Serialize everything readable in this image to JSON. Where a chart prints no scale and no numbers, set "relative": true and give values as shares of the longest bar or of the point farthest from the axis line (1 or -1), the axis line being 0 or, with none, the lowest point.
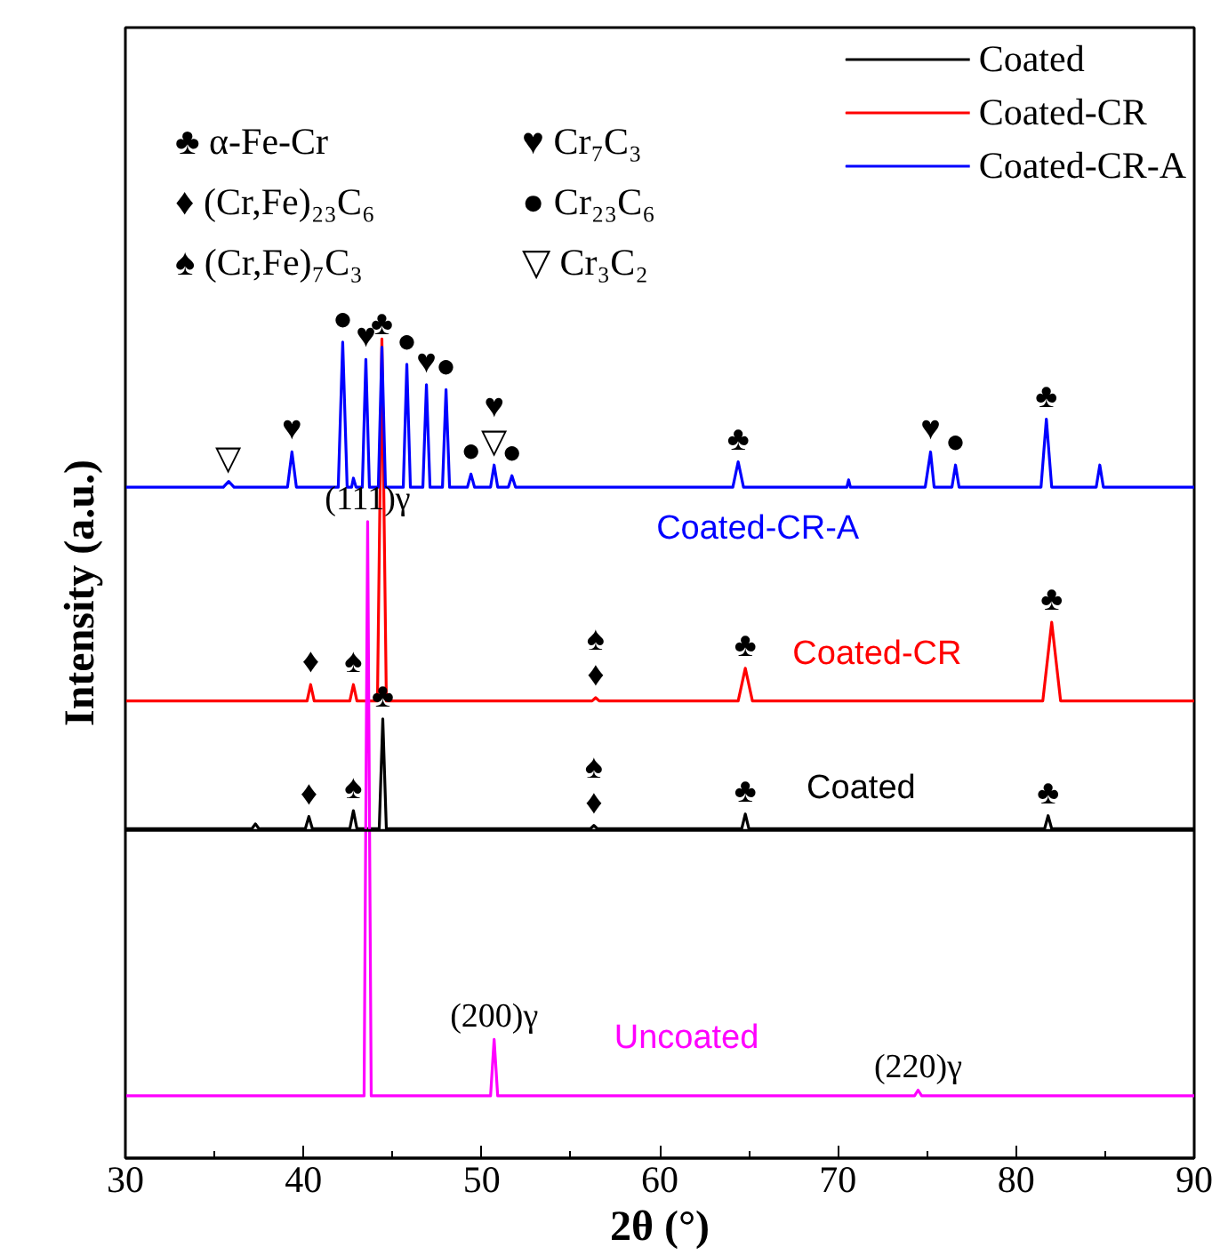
{
  "chart_data": {
    "type": "line",
    "relative": true,
    "xlabel": "2θ (°)",
    "ylabel": "Intensity (a.u.)",
    "xlim": [
      30,
      90
    ],
    "xticks": [
      30,
      40,
      50,
      60,
      70,
      80,
      90
    ],
    "legend": "top right",
    "grid": false,
    "series": [
      {
        "name": "Coated",
        "color": "#000000",
        "x": [
          30,
          37.1,
          37.3,
          37.5,
          40.1,
          40.3,
          40.5,
          42.6,
          42.8,
          43.0,
          44.25,
          44.45,
          44.65,
          56.1,
          56.3,
          56.5,
          64.6,
          64.8,
          65.0,
          81.6,
          81.8,
          82.0,
          90
        ],
        "values": [
          0.402,
          0.402,
          0.408,
          0.402,
          0.402,
          0.417,
          0.402,
          0.402,
          0.424,
          0.402,
          0.402,
          0.536,
          0.402,
          0.402,
          0.406,
          0.402,
          0.402,
          0.42,
          0.402,
          0.402,
          0.418,
          0.402,
          0.402
        ]
      },
      {
        "name": "Coated-CR",
        "color": "#ff0000",
        "x": [
          30,
          40.2,
          40.4,
          40.6,
          42.6,
          42.8,
          43.0,
          44.15,
          44.4,
          44.65,
          56.2,
          56.4,
          56.6,
          64.4,
          64.8,
          65.2,
          81.5,
          82.0,
          82.5,
          90
        ],
        "values": [
          0.558,
          0.558,
          0.578,
          0.558,
          0.558,
          0.578,
          0.558,
          0.558,
          1.0,
          0.558,
          0.558,
          0.562,
          0.558,
          0.558,
          0.598,
          0.558,
          0.558,
          0.654,
          0.558,
          0.558
        ]
      },
      {
        "name": "Coated-CR-A",
        "color": "#0000ff",
        "x": [
          30,
          35.5,
          35.8,
          36.1,
          39.1,
          39.35,
          39.6,
          41.95,
          42.2,
          42.45,
          42.7,
          42.8,
          42.95,
          43.3,
          43.5,
          43.7,
          44.2,
          44.4,
          44.6,
          45.6,
          45.8,
          46.0,
          46.7,
          46.9,
          47.1,
          47.8,
          48.0,
          48.2,
          49.2,
          49.4,
          49.6,
          50.5,
          50.7,
          50.9,
          51.5,
          51.7,
          51.9,
          64.1,
          64.4,
          64.7,
          70.5,
          70.6,
          70.7,
          74.9,
          75.2,
          75.4,
          76.4,
          76.6,
          76.8,
          81.4,
          81.7,
          82.0,
          84.5,
          84.7,
          84.9,
          90
        ],
        "values": [
          0.819,
          0.819,
          0.826,
          0.819,
          0.819,
          0.862,
          0.819,
          0.819,
          0.996,
          0.819,
          0.819,
          0.83,
          0.819,
          0.819,
          0.975,
          0.819,
          0.819,
          0.99,
          0.819,
          0.819,
          0.969,
          0.819,
          0.819,
          0.944,
          0.819,
          0.819,
          0.938,
          0.819,
          0.819,
          0.835,
          0.819,
          0.819,
          0.846,
          0.819,
          0.819,
          0.833,
          0.819,
          0.819,
          0.85,
          0.819,
          0.819,
          0.828,
          0.819,
          0.819,
          0.862,
          0.819,
          0.819,
          0.846,
          0.819,
          0.819,
          0.902,
          0.819,
          0.819,
          0.846,
          0.819,
          0.819
        ]
      },
      {
        "color": "#ff00ff",
        "x": [
          30,
          43.4,
          43.6,
          43.8,
          50.5,
          50.7,
          50.9,
          74.3,
          74.5,
          74.7,
          90
        ],
        "values": [
          0.076,
          0.076,
          0.777,
          0.076,
          0.076,
          0.145,
          0.076,
          0.076,
          0.083,
          0.076,
          0.076
        ]
      }
    ],
    "ref_lines": [
      {
        "axis": "y",
        "value": 0.4,
        "color": "#000000"
      }
    ],
    "annotations": [
      "♣  α-Fe-Cr",
      "♦ (Cr,Fe)₂₃C₆",
      "♠ (Cr,Fe)₇C₃",
      "♥  Cr₇C₃",
      "●  Cr₂₃C₆",
      "▽  Cr₃C₂",
      "Coated",
      "Coated-CR",
      "Coated-CR-A",
      "Uncoated",
      {
        "text": "▽",
        "x": 35.8,
        "y": 0.826
      },
      {
        "text": "♥",
        "x": 39.35,
        "y": 0.862
      },
      {
        "text": "●",
        "x": 42.2,
        "y": 0.996
      },
      {
        "text": "♥",
        "x": 43.5,
        "y": 0.975
      },
      {
        "text": "♣",
        "x": 44.4,
        "y": 0.99
      },
      {
        "text": "●",
        "x": 45.8,
        "y": 0.969
      },
      {
        "text": "♥",
        "x": 46.9,
        "y": 0.944
      },
      {
        "text": "●",
        "x": 48.0,
        "y": 0.938
      },
      {
        "text": "●",
        "x": 49.4,
        "y": 0.835
      },
      {
        "text": "▽",
        "x": 50.7,
        "y": 0.846
      },
      {
        "text": "♥",
        "x": 50.7,
        "y": 0.846
      },
      {
        "text": "●",
        "x": 51.7,
        "y": 0.833
      },
      {
        "text": "♣",
        "x": 64.4,
        "y": 0.85
      },
      {
        "text": "♥",
        "x": 75.2,
        "y": 0.862
      },
      {
        "text": "●",
        "x": 76.6,
        "y": 0.846
      },
      {
        "text": "♣",
        "x": 81.7,
        "y": 0.902
      },
      {
        "text": "♦",
        "x": 40.4,
        "y": 0.578
      },
      {
        "text": "♠",
        "x": 42.8,
        "y": 0.578
      },
      {
        "text": "♦",
        "x": 56.4,
        "y": 0.562
      },
      {
        "text": "♠",
        "x": 56.4,
        "y": 0.562
      },
      {
        "text": "♣",
        "x": 64.8,
        "y": 0.598
      },
      {
        "text": "♣",
        "x": 82.0,
        "y": 0.654
      },
      {
        "text": "♣",
        "x": 44.45,
        "y": 0.536
      },
      {
        "text": "♦",
        "x": 40.3,
        "y": 0.417
      },
      {
        "text": "♠",
        "x": 42.8,
        "y": 0.424
      },
      {
        "text": "♦",
        "x": 56.3,
        "y": 0.406
      },
      {
        "text": "♠",
        "x": 56.3,
        "y": 0.406
      },
      {
        "text": "♣",
        "x": 64.8,
        "y": 0.42
      },
      {
        "text": "♣",
        "x": 81.8,
        "y": 0.418
      },
      {
        "text": "(111)γ",
        "x": 43.6,
        "y": 0.777
      },
      {
        "text": "(200)γ",
        "x": 50.7,
        "y": 0.145
      },
      {
        "text": "(220)γ",
        "x": 74.5,
        "y": 0.083
      }
    ]
  }
}
